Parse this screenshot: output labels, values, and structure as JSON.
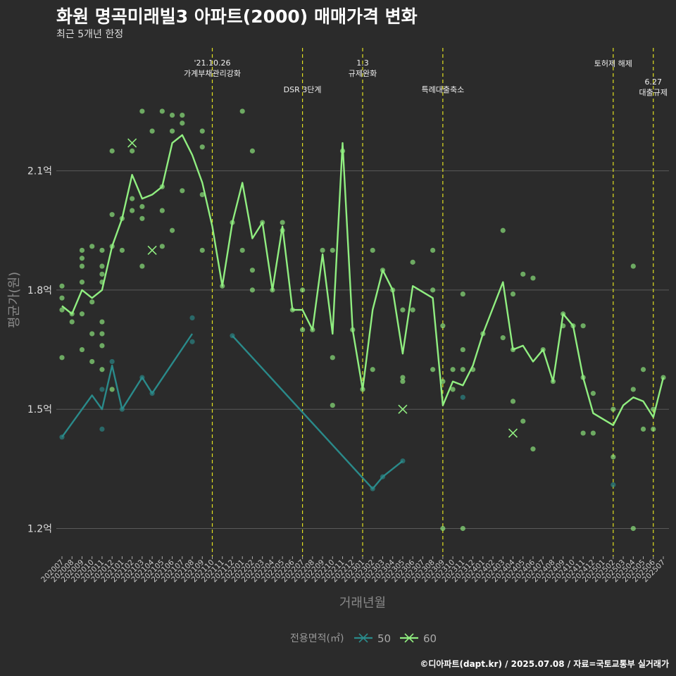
{
  "header": {
    "title": "화원 명곡미래빌3 아파트(2000) 매매가격 변화",
    "subtitle": "최근 5개년 한정"
  },
  "credit": "©디아파트(dapt.kr) / 2025.07.08 / 자료=국토교통부 실거래가",
  "colors": {
    "background": "#2b2b2b",
    "grid": "#5a5a5a",
    "event_line": "#e0e020",
    "series_50": "#2a8a8a",
    "series_60": "#90ee80"
  },
  "chart_data": {
    "type": "line",
    "xlabel": "거래년월",
    "ylabel": "평균가(원)",
    "ylim": [
      1.13,
      2.42
    ],
    "yticks": [
      {
        "value": 1.2,
        "label": "1.2억"
      },
      {
        "value": 1.5,
        "label": "1.5억"
      },
      {
        "value": 1.8,
        "label": "1.8억"
      },
      {
        "value": 2.1,
        "label": "2.1억"
      }
    ],
    "grid": true,
    "legend": {
      "title": "전용면적(㎡)",
      "position": "bottom"
    },
    "categories": [
      "202007",
      "202008",
      "202009",
      "202010",
      "202011",
      "202012",
      "202101",
      "202102",
      "202103",
      "202104",
      "202105",
      "202106",
      "202107",
      "202108",
      "202109",
      "202110",
      "202111",
      "202112",
      "202201",
      "202202",
      "202203",
      "202204",
      "202205",
      "202206",
      "202207",
      "202208",
      "202209",
      "202210",
      "202211",
      "202212",
      "202301",
      "202302",
      "202303",
      "202304",
      "202305",
      "202306",
      "202307",
      "202308",
      "202309",
      "202310",
      "202311",
      "202312",
      "202401",
      "202402",
      "202403",
      "202404",
      "202405",
      "202406",
      "202407",
      "202408",
      "202409",
      "202410",
      "202411",
      "202412",
      "202501",
      "202502",
      "202503",
      "202504",
      "202505",
      "202506",
      "202507"
    ],
    "events": [
      {
        "x": "202110",
        "label": "'21.10.26\n가계부채관리강화",
        "level": 0
      },
      {
        "x": "202207",
        "label": "DSR 3단계",
        "level": 1
      },
      {
        "x": "202301",
        "label": "1.3\n규제완화",
        "level": 0
      },
      {
        "x": "202309",
        "label": "특례대출축소",
        "level": 1
      },
      {
        "x": "202502",
        "label": "토허제 해제",
        "level": 0
      },
      {
        "x": "202506",
        "label": "6.27\n대출규제",
        "level": 2
      }
    ],
    "series": [
      {
        "name": "50",
        "segments": [
          [
            [
              "202007",
              1.43
            ],
            [
              "202010",
              1.535
            ],
            [
              "202011",
              1.5
            ],
            [
              "202012",
              1.61
            ],
            [
              "202101",
              1.5
            ],
            [
              "202103",
              1.58
            ],
            [
              "202104",
              1.54
            ],
            [
              "202108",
              1.69
            ]
          ],
          [
            [
              "202112",
              1.685
            ],
            [
              "202302",
              1.3
            ],
            [
              "202303",
              1.33
            ],
            [
              "202305",
              1.37
            ]
          ]
        ],
        "points": [
          [
            "202007",
            1.43
          ],
          [
            "202011",
            1.45
          ],
          [
            "202011",
            1.55
          ],
          [
            "202012",
            1.62
          ],
          [
            "202101",
            1.5
          ],
          [
            "202103",
            1.58
          ],
          [
            "202104",
            1.54
          ],
          [
            "202108",
            1.73
          ],
          [
            "202108",
            1.67
          ],
          [
            "202112",
            1.685
          ],
          [
            "202302",
            1.3
          ],
          [
            "202303",
            1.33
          ],
          [
            "202305",
            1.37
          ],
          [
            "202311",
            1.53
          ],
          [
            "202502",
            1.31
          ]
        ],
        "crosses": []
      },
      {
        "name": "60",
        "segments": [
          [
            [
              "202007",
              1.76
            ],
            [
              "202008",
              1.74
            ],
            [
              "202009",
              1.8
            ],
            [
              "202010",
              1.78
            ],
            [
              "202011",
              1.8
            ],
            [
              "202012",
              1.91
            ],
            [
              "202101",
              1.98
            ],
            [
              "202102",
              2.09
            ],
            [
              "202103",
              2.03
            ],
            [
              "202104",
              2.04
            ],
            [
              "202105",
              2.06
            ],
            [
              "202106",
              2.17
            ],
            [
              "202107",
              2.19
            ],
            [
              "202108",
              2.14
            ],
            [
              "202109",
              2.07
            ],
            [
              "202110",
              1.96
            ],
            [
              "202111",
              1.81
            ],
            [
              "202112",
              1.97
            ],
            [
              "202201",
              2.07
            ],
            [
              "202202",
              1.93
            ],
            [
              "202203",
              1.97
            ],
            [
              "202204",
              1.8
            ],
            [
              "202205",
              1.96
            ],
            [
              "202206",
              1.75
            ],
            [
              "202207",
              1.75
            ],
            [
              "202208",
              1.7
            ],
            [
              "202209",
              1.89
            ],
            [
              "202210",
              1.69
            ],
            [
              "202211",
              2.17
            ],
            [
              "202212",
              1.7
            ],
            [
              "202301",
              1.55
            ],
            [
              "202302",
              1.75
            ],
            [
              "202303",
              1.85
            ],
            [
              "202304",
              1.8
            ],
            [
              "202305",
              1.64
            ],
            [
              "202306",
              1.81
            ],
            [
              "202308",
              1.78
            ],
            [
              "202309",
              1.51
            ],
            [
              "202310",
              1.57
            ],
            [
              "202311",
              1.56
            ],
            [
              "202312",
              1.61
            ],
            [
              "202401",
              1.69
            ],
            [
              "202403",
              1.82
            ],
            [
              "202404",
              1.65
            ],
            [
              "202405",
              1.66
            ],
            [
              "202406",
              1.62
            ],
            [
              "202407",
              1.65
            ],
            [
              "202408",
              1.57
            ],
            [
              "202409",
              1.74
            ],
            [
              "202410",
              1.71
            ],
            [
              "202411",
              1.58
            ],
            [
              "202412",
              1.49
            ],
            [
              "202502",
              1.46
            ],
            [
              "202503",
              1.51
            ],
            [
              "202504",
              1.53
            ],
            [
              "202505",
              1.52
            ],
            [
              "202506",
              1.48
            ],
            [
              "202507",
              1.58
            ]
          ]
        ],
        "points": [
          [
            "202007",
            1.81
          ],
          [
            "202007",
            1.78
          ],
          [
            "202007",
            1.75
          ],
          [
            "202007",
            1.63
          ],
          [
            "202008",
            1.74
          ],
          [
            "202008",
            1.72
          ],
          [
            "202009",
            1.9
          ],
          [
            "202009",
            1.88
          ],
          [
            "202009",
            1.86
          ],
          [
            "202009",
            1.82
          ],
          [
            "202009",
            1.74
          ],
          [
            "202009",
            1.65
          ],
          [
            "202010",
            1.91
          ],
          [
            "202010",
            1.77
          ],
          [
            "202010",
            1.69
          ],
          [
            "202010",
            1.62
          ],
          [
            "202011",
            1.9
          ],
          [
            "202011",
            1.86
          ],
          [
            "202011",
            1.84
          ],
          [
            "202011",
            1.82
          ],
          [
            "202011",
            1.72
          ],
          [
            "202011",
            1.69
          ],
          [
            "202011",
            1.66
          ],
          [
            "202011",
            1.6
          ],
          [
            "202012",
            2.15
          ],
          [
            "202012",
            1.99
          ],
          [
            "202012",
            1.91
          ],
          [
            "202012",
            1.55
          ],
          [
            "202101",
            1.98
          ],
          [
            "202101",
            1.9
          ],
          [
            "202102",
            2.15
          ],
          [
            "202102",
            2.03
          ],
          [
            "202102",
            2.0
          ],
          [
            "202103",
            2.25
          ],
          [
            "202103",
            2.01
          ],
          [
            "202103",
            1.98
          ],
          [
            "202103",
            1.86
          ],
          [
            "202104",
            2.2
          ],
          [
            "202105",
            2.25
          ],
          [
            "202105",
            2.06
          ],
          [
            "202105",
            2.0
          ],
          [
            "202105",
            1.91
          ],
          [
            "202106",
            2.24
          ],
          [
            "202106",
            2.2
          ],
          [
            "202106",
            1.95
          ],
          [
            "202107",
            2.24
          ],
          [
            "202107",
            2.22
          ],
          [
            "202107",
            2.05
          ],
          [
            "202109",
            2.2
          ],
          [
            "202109",
            2.16
          ],
          [
            "202109",
            2.04
          ],
          [
            "202109",
            1.9
          ],
          [
            "202111",
            1.81
          ],
          [
            "202112",
            1.97
          ],
          [
            "202201",
            2.25
          ],
          [
            "202201",
            1.9
          ],
          [
            "202202",
            2.15
          ],
          [
            "202202",
            1.85
          ],
          [
            "202202",
            1.8
          ],
          [
            "202203",
            1.97
          ],
          [
            "202204",
            1.8
          ],
          [
            "202205",
            1.97
          ],
          [
            "202205",
            1.95
          ],
          [
            "202206",
            1.75
          ],
          [
            "202207",
            1.8
          ],
          [
            "202207",
            1.7
          ],
          [
            "202208",
            1.7
          ],
          [
            "202209",
            1.9
          ],
          [
            "202210",
            1.9
          ],
          [
            "202210",
            1.63
          ],
          [
            "202210",
            1.51
          ],
          [
            "202211",
            2.15
          ],
          [
            "202212",
            1.7
          ],
          [
            "202301",
            1.55
          ],
          [
            "202302",
            1.9
          ],
          [
            "202302",
            1.6
          ],
          [
            "202303",
            1.85
          ],
          [
            "202304",
            1.8
          ],
          [
            "202305",
            1.75
          ],
          [
            "202305",
            1.58
          ],
          [
            "202305",
            1.57
          ],
          [
            "202306",
            1.87
          ],
          [
            "202306",
            1.75
          ],
          [
            "202308",
            1.9
          ],
          [
            "202308",
            1.8
          ],
          [
            "202308",
            1.6
          ],
          [
            "202309",
            1.71
          ],
          [
            "202309",
            1.57
          ],
          [
            "202309",
            1.2
          ],
          [
            "202310",
            1.55
          ],
          [
            "202310",
            1.6
          ],
          [
            "202311",
            1.65
          ],
          [
            "202311",
            1.6
          ],
          [
            "202311",
            1.79
          ],
          [
            "202311",
            1.2
          ],
          [
            "202312",
            1.6
          ],
          [
            "202401",
            1.69
          ],
          [
            "202403",
            1.95
          ],
          [
            "202403",
            1.68
          ],
          [
            "202404",
            1.79
          ],
          [
            "202404",
            1.65
          ],
          [
            "202404",
            1.52
          ],
          [
            "202405",
            1.84
          ],
          [
            "202405",
            1.47
          ],
          [
            "202406",
            1.83
          ],
          [
            "202406",
            1.4
          ],
          [
            "202407",
            1.65
          ],
          [
            "202408",
            1.57
          ],
          [
            "202409",
            1.74
          ],
          [
            "202409",
            1.71
          ],
          [
            "202410",
            1.71
          ],
          [
            "202411",
            1.71
          ],
          [
            "202411",
            1.58
          ],
          [
            "202411",
            1.44
          ],
          [
            "202412",
            1.54
          ],
          [
            "202412",
            1.44
          ],
          [
            "202502",
            1.5
          ],
          [
            "202502",
            1.38
          ],
          [
            "202504",
            1.86
          ],
          [
            "202504",
            1.55
          ],
          [
            "202504",
            1.2
          ],
          [
            "202505",
            1.6
          ],
          [
            "202505",
            1.45
          ],
          [
            "202506",
            1.5
          ],
          [
            "202506",
            1.45
          ],
          [
            "202507",
            1.58
          ]
        ],
        "crosses": [
          [
            "202102",
            2.17
          ],
          [
            "202104",
            1.9
          ],
          [
            "202305",
            1.5
          ],
          [
            "202404",
            1.44
          ]
        ]
      }
    ]
  }
}
